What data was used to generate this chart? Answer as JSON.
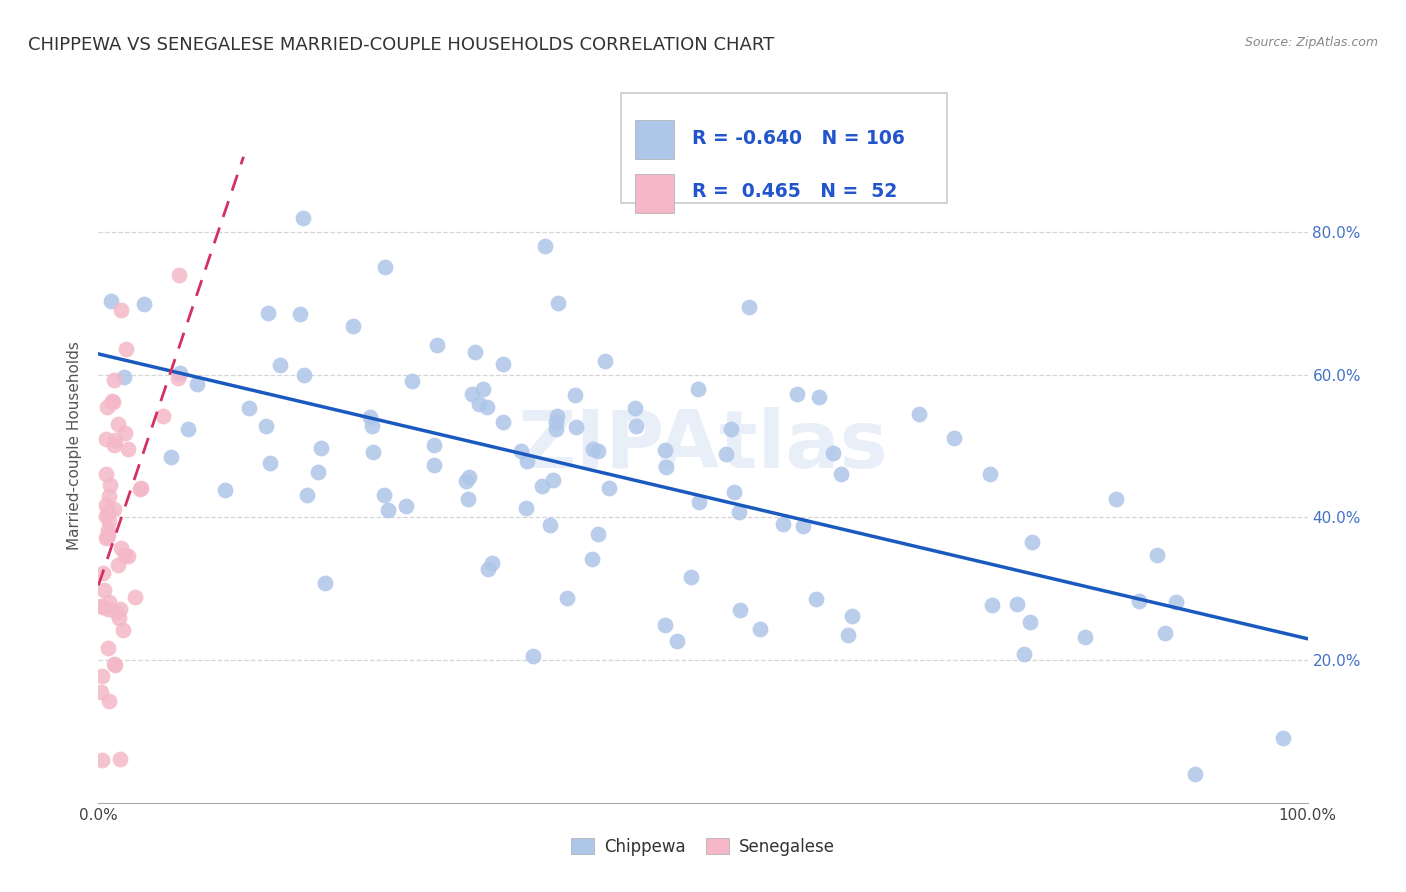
{
  "title": "CHIPPEWA VS SENEGALESE MARRIED-COUPLE HOUSEHOLDS CORRELATION CHART",
  "source": "Source: ZipAtlas.com",
  "ylabel": "Married-couple Households",
  "chippewa_R": -0.64,
  "chippewa_N": 106,
  "senegalese_R": 0.465,
  "senegalese_N": 52,
  "chippewa_color": "#aec6e8",
  "senegalese_color": "#f4b8c8",
  "chippewa_line_color": "#1a5abf",
  "senegalese_line_color": "#d43060",
  "watermark": "ZIPAtlas",
  "xlim": [
    0,
    1
  ],
  "ylim": [
    0,
    1
  ],
  "xtick_positions": [
    0.0,
    1.0
  ],
  "xtick_labels": [
    "0.0%",
    "100.0%"
  ],
  "ytick_positions": [
    0.2,
    0.4,
    0.6,
    0.8
  ],
  "ytick_labels_right": [
    "20.0%",
    "40.0%",
    "60.0%",
    "80.0%"
  ],
  "background_color": "#ffffff",
  "grid_color": "#cccccc",
  "title_fontsize": 13,
  "label_fontsize": 11,
  "tick_fontsize": 11,
  "right_tick_color": "#4472c4",
  "legend_R1": "R = -0.640",
  "legend_N1": "N = 106",
  "legend_R2": "R =  0.465",
  "legend_N2": "N =  52",
  "legend_color": "#2255cc"
}
